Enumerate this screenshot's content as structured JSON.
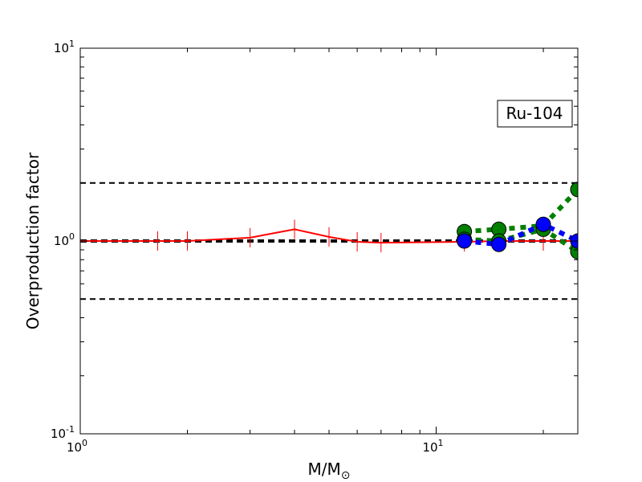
{
  "chart_data": {
    "type": "line",
    "xscale": "log",
    "yscale": "log",
    "xlim": [
      1,
      25
    ],
    "ylim": [
      0.1,
      10
    ],
    "xlabel_main": "M/M",
    "xlabel_sub": "⊙",
    "ylabel": "Overproduction factor",
    "annotation": "Ru-104",
    "annotation_position": "upper-right",
    "grid": false,
    "x_ticks": [
      {
        "value": 1,
        "base": "10",
        "exp": "0"
      },
      {
        "value": 10,
        "base": "10",
        "exp": "1"
      }
    ],
    "y_ticks": [
      {
        "value": 0.1,
        "base": "10",
        "exp": "-1"
      },
      {
        "value": 1,
        "base": "10",
        "exp": "0"
      },
      {
        "value": 10,
        "base": "10",
        "exp": "1"
      }
    ],
    "reference_lines": [
      {
        "y": 2.0,
        "style": "dashed",
        "color": "#000000",
        "width": 2
      },
      {
        "y": 1.0,
        "style": "dashed",
        "color": "#000000",
        "width": 4
      },
      {
        "y": 0.5,
        "style": "dashed",
        "color": "#000000",
        "width": 2
      }
    ],
    "series": [
      {
        "color": "#ff0000",
        "style": "solid",
        "marker": "vline",
        "x": [
          1.0,
          1.65,
          2.0,
          3.0,
          4.0,
          5.0,
          6.0,
          7.0,
          12.0,
          15.0,
          20.0,
          25.0
        ],
        "y": [
          1.0,
          1.0,
          1.0,
          1.04,
          1.15,
          1.05,
          0.99,
          0.98,
          0.99,
          1.0,
          1.0,
          1.0
        ]
      },
      {
        "color": "#008000",
        "style": "dotted",
        "marker": "circle",
        "x": [
          12.0,
          15.0,
          20.0,
          25.0
        ],
        "y": [
          1.12,
          1.15,
          1.2,
          1.85
        ]
      },
      {
        "color": "#008000",
        "style": "dotted",
        "marker": "circle",
        "x": [
          12.0,
          15.0,
          20.0,
          25.0
        ],
        "y": [
          1.02,
          1.0,
          1.15,
          0.88
        ]
      },
      {
        "color": "#0000ff",
        "style": "dotted",
        "marker": "circle",
        "x": [
          12.0,
          15.0,
          20.0,
          25.0
        ],
        "y": [
          1.0,
          0.96,
          1.22,
          1.0
        ]
      }
    ]
  }
}
